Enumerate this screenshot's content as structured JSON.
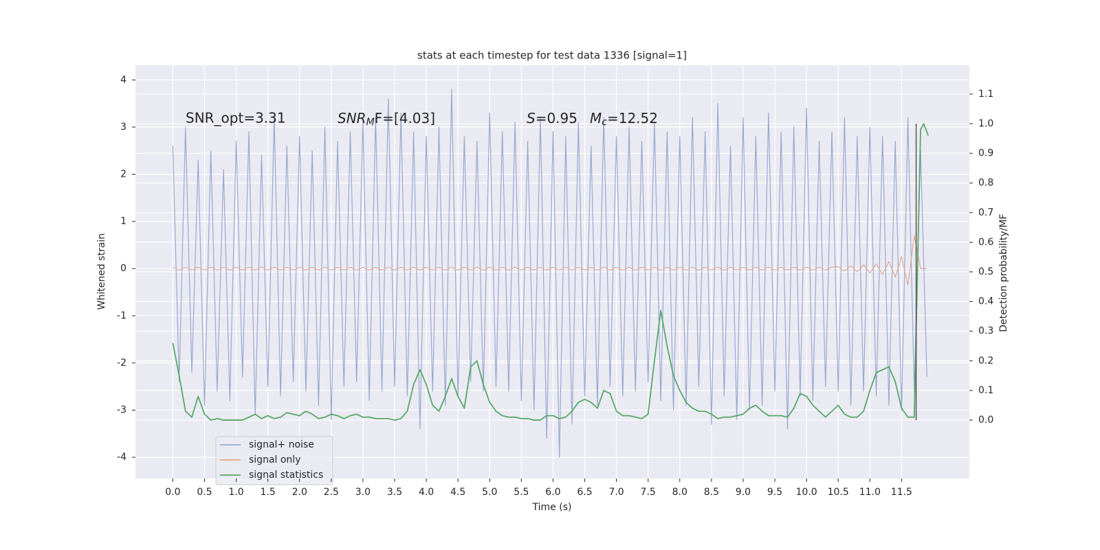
{
  "chart_data": {
    "type": "line",
    "title": "stats at each timestep for test data 1336 [signal=1]",
    "xlabel": "Time (s)",
    "ylabel": "Whitened strain",
    "y2label": "Detection probability/MF",
    "xlim": [
      -0.59,
      12.57
    ],
    "ylim": [
      -4.45,
      4.31
    ],
    "y2lim": [
      -0.197,
      1.197
    ],
    "grid": true,
    "legend": "lower left",
    "xticks": [
      {
        "value": 0,
        "label": "0.0"
      },
      0.5,
      {
        "value": 1,
        "label": "1.0"
      },
      1.5,
      {
        "value": 2,
        "label": "2.0"
      },
      2.5,
      {
        "value": 3,
        "label": "3.0"
      },
      3.5,
      {
        "value": 4,
        "label": "4.0"
      },
      4.5,
      {
        "value": 5,
        "label": "5.0"
      },
      5.5,
      {
        "value": 6,
        "label": "6.0"
      },
      6.5,
      {
        "value": 7,
        "label": "7.0"
      },
      7.5,
      {
        "value": 8,
        "label": "8.0"
      },
      8.5,
      {
        "value": 9,
        "label": "9.0"
      },
      9.5,
      {
        "value": 10,
        "label": "10.0"
      },
      10.5,
      {
        "value": 11,
        "label": "11.0"
      },
      11.5
    ],
    "yticks": [
      -4,
      -3,
      -2,
      -1,
      0,
      1,
      2,
      3,
      4
    ],
    "y2ticks": [
      {
        "value": 0,
        "label": "0.0"
      },
      0.1,
      0.2,
      0.3,
      0.4,
      0.5,
      0.6,
      0.7,
      0.8,
      0.9,
      {
        "value": 1,
        "label": "1.0"
      },
      1.1
    ],
    "annotations": [
      {
        "text": "SNR_opt=3.31"
      },
      {
        "text": "SNR",
        "sub": "M",
        "rest": "F=[4.03]"
      },
      {
        "text": "S",
        "rest": "=0.95"
      },
      {
        "text": "M",
        "sub": "c",
        "rest": "=12.52"
      }
    ],
    "vline": {
      "x": 11.73,
      "y2": [
        0,
        1.0
      ],
      "color": "#555555"
    },
    "x": [
      0,
      0.1,
      0.2,
      0.3,
      0.4,
      0.5,
      0.6,
      0.7,
      0.8,
      0.9,
      1,
      1.1,
      1.2,
      1.3,
      1.4,
      1.5,
      1.6,
      1.7,
      1.8,
      1.9,
      2,
      2.1,
      2.2,
      2.3,
      2.4,
      2.5,
      2.6,
      2.7,
      2.8,
      2.9,
      3,
      3.1,
      3.2,
      3.3,
      3.4,
      3.5,
      3.6,
      3.7,
      3.8,
      3.9,
      4,
      4.1,
      4.2,
      4.3,
      4.4,
      4.5,
      4.6,
      4.7,
      4.8,
      4.9,
      5,
      5.1,
      5.2,
      5.3,
      5.4,
      5.5,
      5.6,
      5.7,
      5.8,
      5.9,
      6,
      6.1,
      6.2,
      6.3,
      6.4,
      6.5,
      6.6,
      6.7,
      6.8,
      6.9,
      7,
      7.1,
      7.2,
      7.3,
      7.4,
      7.5,
      7.6,
      7.7,
      7.8,
      7.9,
      8,
      8.1,
      8.2,
      8.3,
      8.4,
      8.5,
      8.6,
      8.7,
      8.8,
      8.9,
      9,
      9.1,
      9.2,
      9.3,
      9.4,
      9.5,
      9.6,
      9.7,
      9.8,
      9.9,
      10,
      10.1,
      10.2,
      10.3,
      10.4,
      10.5,
      10.6,
      10.7,
      10.8,
      10.9,
      11,
      11.1,
      11.2,
      11.3,
      11.4,
      11.5,
      11.6,
      11.7,
      11.8,
      11.9
    ],
    "series": [
      {
        "name": "signal+ noise",
        "color": "#97a9d0",
        "values": [
          2.6,
          -2.4,
          3.0,
          -2.2,
          2.3,
          -2.9,
          2.5,
          -2.6,
          2.1,
          -2.8,
          2.7,
          -2.3,
          2.9,
          -3.1,
          2.4,
          -2.5,
          3.2,
          -2.7,
          2.6,
          -2.4,
          2.8,
          -2.6,
          2.5,
          -2.9,
          3.0,
          -3.2,
          2.7,
          -2.5,
          2.9,
          -2.4,
          3.1,
          -2.8,
          3.2,
          -2.6,
          3.6,
          -2.5,
          3.3,
          -2.7,
          2.9,
          -3.4,
          2.8,
          -2.6,
          3.0,
          -2.9,
          3.8,
          -2.7,
          2.8,
          -2.4,
          2.7,
          -2.6,
          3.3,
          -2.5,
          2.9,
          -2.6,
          3.1,
          -2.8,
          2.7,
          -3.0,
          3.2,
          -3.6,
          2.9,
          -4.0,
          2.8,
          -3.3,
          3.1,
          -2.7,
          2.6,
          -2.9,
          3.2,
          -2.5,
          2.8,
          -2.7,
          3.0,
          -2.6,
          2.7,
          -2.4,
          3.1,
          -2.8,
          2.9,
          -3.0,
          2.8,
          -2.9,
          3.2,
          -2.5,
          2.9,
          -3.3,
          3.5,
          -2.7,
          2.6,
          -3.2,
          3.2,
          -3.0,
          2.8,
          -2.9,
          3.3,
          -2.6,
          2.9,
          -3.4,
          3.0,
          -2.7,
          3.4,
          -2.8,
          2.7,
          -2.5,
          2.9,
          -2.6,
          3.2,
          -2.9,
          2.8,
          -2.6,
          3.0,
          -2.7,
          2.8,
          -2.9,
          2.7,
          -3.0,
          3.2,
          -2.6,
          2.5,
          -2.3
        ]
      },
      {
        "name": "signal only",
        "color": "#e3aa90",
        "values": [
          0.03,
          -0.03,
          0.03,
          -0.03,
          0.03,
          -0.03,
          0.03,
          -0.03,
          0.03,
          -0.03,
          0.03,
          -0.03,
          0.03,
          -0.03,
          0.03,
          -0.03,
          0.03,
          -0.03,
          0.03,
          -0.03,
          0.03,
          -0.03,
          0.03,
          -0.03,
          0.03,
          -0.03,
          0.03,
          -0.03,
          0.03,
          -0.03,
          0.03,
          -0.03,
          0.03,
          -0.03,
          0.03,
          -0.03,
          0.03,
          -0.03,
          0.03,
          -0.03,
          0.03,
          -0.03,
          0.03,
          -0.03,
          0.03,
          -0.03,
          0.03,
          -0.03,
          0.03,
          -0.03,
          0.03,
          -0.03,
          0.03,
          -0.03,
          0.03,
          -0.03,
          0.03,
          -0.03,
          0.03,
          -0.03,
          0.03,
          -0.03,
          0.03,
          -0.03,
          0.03,
          -0.03,
          0.03,
          -0.03,
          0.03,
          -0.03,
          0.03,
          -0.03,
          0.03,
          -0.03,
          0.03,
          -0.03,
          0.03,
          -0.03,
          0.03,
          -0.03,
          0.03,
          -0.03,
          0.03,
          -0.03,
          0.03,
          -0.03,
          0.03,
          -0.03,
          0.03,
          -0.03,
          0.03,
          -0.03,
          0.03,
          -0.03,
          0.03,
          -0.03,
          0.03,
          -0.03,
          0.03,
          -0.03,
          0.03,
          -0.03,
          0.03,
          -0.03,
          0.03,
          0.04,
          -0.05,
          0.06,
          -0.07,
          0.08,
          -0.09,
          0.1,
          -0.12,
          0.15,
          -0.18,
          0.25,
          -0.35,
          0.7,
          0,
          0
        ]
      },
      {
        "name": "signal statistics",
        "color": "#55a868",
        "axis": "y2",
        "x": [
          0,
          0.1,
          0.2,
          0.3,
          0.4,
          0.5,
          0.6,
          0.7,
          0.8,
          0.9,
          1,
          1.1,
          1.2,
          1.3,
          1.4,
          1.5,
          1.6,
          1.7,
          1.8,
          1.9,
          2,
          2.1,
          2.2,
          2.3,
          2.4,
          2.5,
          2.6,
          2.7,
          2.8,
          2.9,
          3,
          3.1,
          3.2,
          3.3,
          3.4,
          3.5,
          3.6,
          3.7,
          3.8,
          3.9,
          4,
          4.1,
          4.2,
          4.3,
          4.4,
          4.5,
          4.6,
          4.7,
          4.8,
          4.9,
          5,
          5.1,
          5.2,
          5.3,
          5.4,
          5.5,
          5.6,
          5.7,
          5.8,
          5.9,
          6,
          6.1,
          6.2,
          6.3,
          6.4,
          6.5,
          6.6,
          6.7,
          6.8,
          6.9,
          7,
          7.1,
          7.2,
          7.3,
          7.4,
          7.5,
          7.6,
          7.7,
          7.8,
          7.9,
          8,
          8.1,
          8.2,
          8.3,
          8.4,
          8.5,
          8.6,
          8.7,
          8.8,
          8.9,
          9,
          9.1,
          9.2,
          9.3,
          9.4,
          9.5,
          9.6,
          9.7,
          9.8,
          9.9,
          10,
          10.1,
          10.2,
          10.3,
          10.4,
          10.5,
          10.6,
          10.7,
          10.8,
          10.9,
          11,
          11.1,
          11.2,
          11.3,
          11.4,
          11.5,
          11.6,
          11.7,
          11.8,
          11.85,
          11.92
        ],
        "values": [
          0.26,
          0.15,
          0.03,
          0.01,
          0.08,
          0.02,
          0.0,
          0.005,
          0.0,
          0.0,
          0.0,
          0.0,
          0.01,
          0.02,
          0.005,
          0.015,
          0.005,
          0.01,
          0.025,
          0.02,
          0.015,
          0.03,
          0.02,
          0.005,
          0.01,
          0.02,
          0.015,
          0.005,
          0.015,
          0.02,
          0.01,
          0.01,
          0.005,
          0.005,
          0.005,
          0.0,
          0.005,
          0.03,
          0.12,
          0.17,
          0.12,
          0.05,
          0.03,
          0.08,
          0.14,
          0.08,
          0.04,
          0.18,
          0.2,
          0.12,
          0.06,
          0.03,
          0.015,
          0.01,
          0.01,
          0.005,
          0.005,
          0.0,
          0.0,
          0.015,
          0.015,
          0.005,
          0.01,
          0.03,
          0.06,
          0.07,
          0.06,
          0.04,
          0.1,
          0.09,
          0.03,
          0.015,
          0.015,
          0.01,
          0.005,
          0.02,
          0.2,
          0.37,
          0.25,
          0.15,
          0.1,
          0.06,
          0.04,
          0.03,
          0.03,
          0.02,
          0.005,
          0.01,
          0.01,
          0.015,
          0.02,
          0.04,
          0.05,
          0.03,
          0.015,
          0.015,
          0.015,
          0.01,
          0.04,
          0.09,
          0.08,
          0.05,
          0.03,
          0.01,
          0.03,
          0.05,
          0.02,
          0.01,
          0.01,
          0.03,
          0.1,
          0.16,
          0.17,
          0.18,
          0.13,
          0.04,
          0.01,
          0.01,
          0.98,
          1.0,
          0.96
        ]
      }
    ]
  }
}
